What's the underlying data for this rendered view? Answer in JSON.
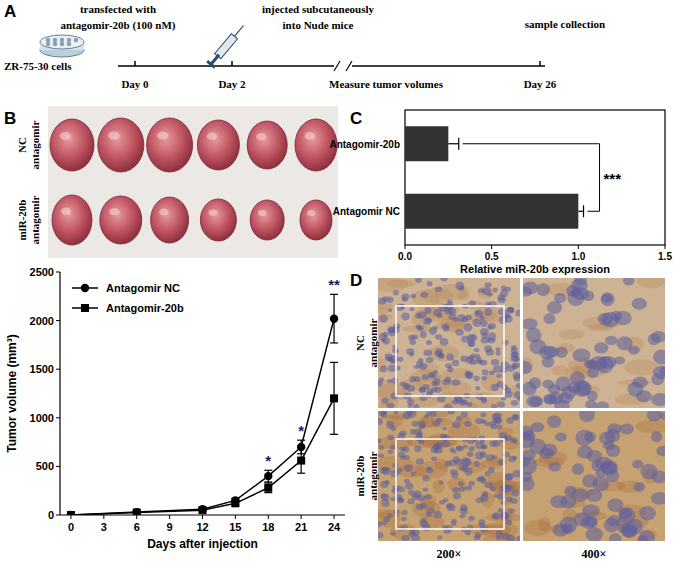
{
  "panel_labels": [
    "A",
    "B",
    "C",
    "D"
  ],
  "timeline": {
    "cell_line": "ZR-75-30 cells",
    "events": [
      {
        "day_label": "Day 0",
        "text": [
          "transfected with",
          "antagomir-20b (100 nM)"
        ]
      },
      {
        "day_label": "Day 2",
        "text": [
          "injected subcutaneously",
          "into Nude mice"
        ]
      },
      {
        "day_label": "Day 26",
        "text": [
          "sample collection"
        ]
      }
    ],
    "interval_label": "Measure tumor volumes"
  },
  "tumor_photos": {
    "rows": [
      {
        "label": "NC antagomir",
        "count": 6
      },
      {
        "label": "miR-20b antagomir",
        "count": 6
      }
    ]
  },
  "chart_data": [
    {
      "type": "line",
      "x": [
        0,
        6,
        12,
        15,
        18,
        21,
        24
      ],
      "series": [
        {
          "name": "Antagomir NC",
          "color": "#000000",
          "marker": "circle",
          "line_style": "solid",
          "values": [
            0,
            30,
            60,
            150,
            400,
            700,
            2020
          ],
          "errors": [
            0,
            5,
            10,
            20,
            60,
            70,
            250
          ]
        },
        {
          "name": "Antagomir-20b",
          "color": "#000000",
          "marker": "square",
          "line_style": "solid",
          "values": [
            0,
            25,
            50,
            120,
            280,
            560,
            1200
          ],
          "errors": [
            0,
            5,
            10,
            20,
            50,
            130,
            370
          ]
        }
      ],
      "xlim": [
        -1,
        25
      ],
      "xticks": [
        0,
        3,
        6,
        9,
        12,
        15,
        18,
        21,
        24
      ],
      "ylim": [
        0,
        2500
      ],
      "yticks": [
        0,
        500,
        1000,
        1500,
        2000,
        2500
      ],
      "x_label": "Days after injection",
      "y_label": "Tumor volume (mm³)",
      "legend": "upper left",
      "grid": false,
      "annotations": [
        {
          "x": 18,
          "text": "*"
        },
        {
          "x": 21,
          "text": "*"
        },
        {
          "x": 24,
          "text": "**"
        }
      ]
    },
    {
      "type": "bar",
      "orientation": "horizontal",
      "categories": [
        "Antagomir-20b",
        "Antagomir NC"
      ],
      "values": [
        0.25,
        1.0
      ],
      "errors": [
        0.06,
        0.03
      ],
      "color": "#333333",
      "xlim": [
        0,
        1.5
      ],
      "xticks": [
        {
          "value": 0,
          "label": "0.0"
        },
        {
          "value": 0.5,
          "label": "0.5"
        },
        {
          "value": 1,
          "label": "1.0"
        },
        {
          "value": 1.5,
          "label": "1.5"
        }
      ],
      "x_label": "Relative miR-20b expression",
      "grid": false,
      "annotations": [
        {
          "text": "***"
        }
      ]
    }
  ],
  "ihc": {
    "rows": [
      "NC antagomir",
      "miR-20b antagomir"
    ],
    "columns": [
      "200×",
      "400×"
    ]
  }
}
